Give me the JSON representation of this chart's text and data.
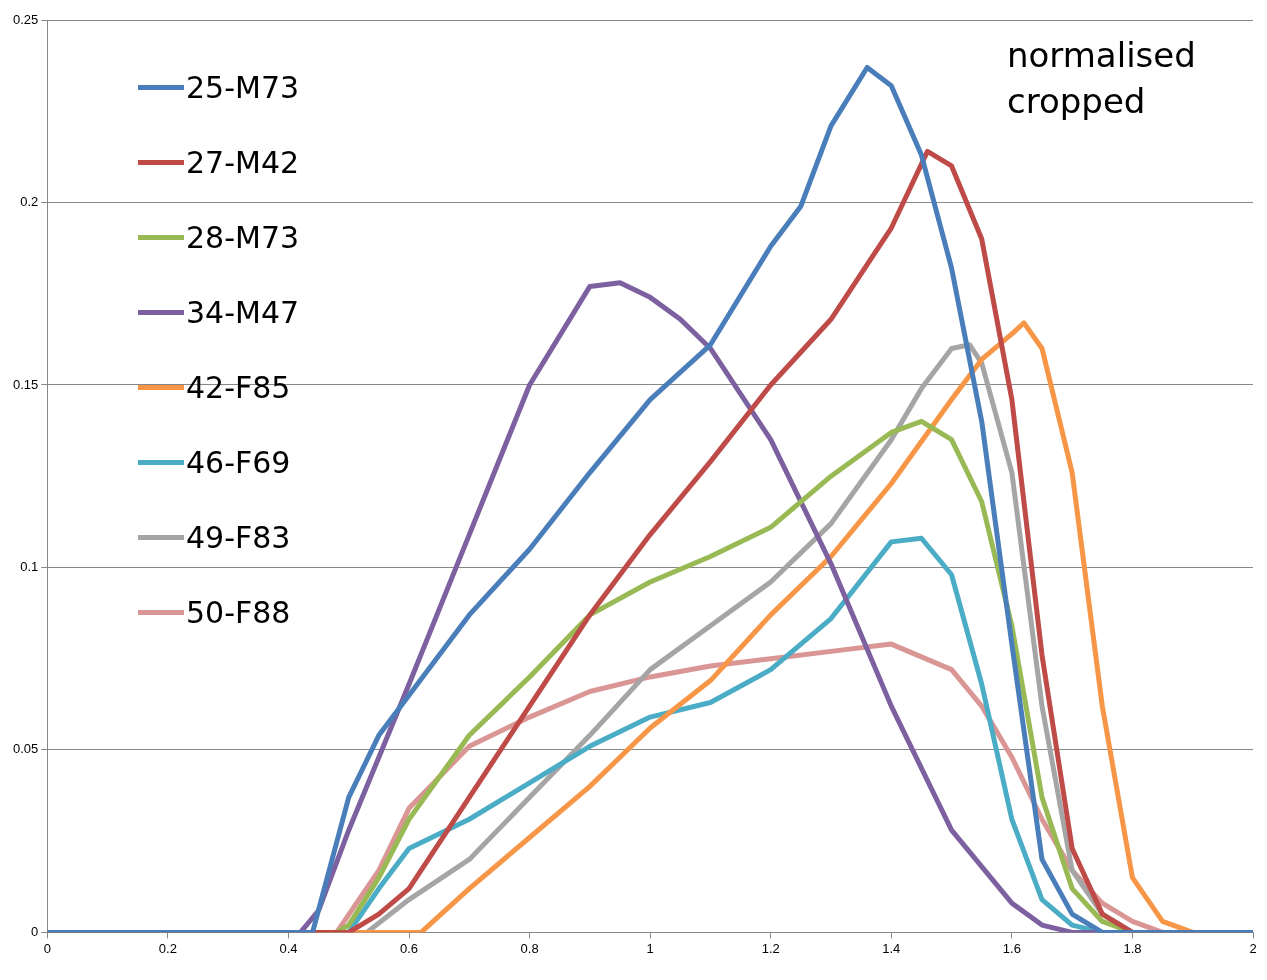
{
  "chart_data": {
    "type": "line",
    "annotations": [
      "normalised cropped"
    ],
    "xlim": [
      0,
      2
    ],
    "xticks": [
      0,
      0.2,
      0.4,
      0.6,
      0.8,
      1,
      1.2,
      1.4,
      1.6,
      1.8,
      2
    ],
    "ylim": [
      0,
      0.25
    ],
    "yticks": [
      0,
      0.05,
      0.1,
      0.15,
      0.2,
      0.25
    ],
    "grid": "y",
    "legend": "top left",
    "marker": "none",
    "line_style": "solid",
    "series": [
      {
        "name": "25-M73",
        "color": "#4a7ebb",
        "x": [
          0,
          0.44,
          0.5,
          0.55,
          0.6,
          0.7,
          0.8,
          0.9,
          1,
          1.1,
          1.2,
          1.25,
          1.3,
          1.36,
          1.4,
          1.45,
          1.5,
          1.55,
          1.6,
          1.65,
          1.7,
          1.75,
          2
        ],
        "values": [
          0,
          0,
          0.037,
          0.054,
          0.065,
          0.087,
          0.105,
          0.126,
          0.146,
          0.161,
          0.188,
          0.199,
          0.221,
          0.237,
          0.232,
          0.213,
          0.182,
          0.14,
          0.079,
          0.02,
          0.005,
          0,
          0
        ]
      },
      {
        "name": "27-M42",
        "color": "#be4b48",
        "x": [
          0,
          0.5,
          0.55,
          0.6,
          0.7,
          0.8,
          0.9,
          1,
          1.1,
          1.2,
          1.3,
          1.4,
          1.46,
          1.5,
          1.55,
          1.6,
          1.65,
          1.7,
          1.75,
          1.8,
          2
        ],
        "values": [
          0,
          0,
          0.005,
          0.012,
          0.037,
          0.062,
          0.087,
          0.109,
          0.129,
          0.15,
          0.168,
          0.193,
          0.214,
          0.21,
          0.19,
          0.146,
          0.076,
          0.023,
          0.005,
          0,
          0
        ]
      },
      {
        "name": "28-M73",
        "color": "#98b954",
        "x": [
          0,
          0.48,
          0.5,
          0.55,
          0.6,
          0.7,
          0.8,
          0.9,
          1,
          1.1,
          1.2,
          1.3,
          1.4,
          1.45,
          1.5,
          1.55,
          1.6,
          1.65,
          1.7,
          1.75,
          1.8,
          2
        ],
        "values": [
          0,
          0,
          0.002,
          0.015,
          0.031,
          0.054,
          0.07,
          0.087,
          0.096,
          0.103,
          0.111,
          0.125,
          0.137,
          0.14,
          0.135,
          0.118,
          0.084,
          0.037,
          0.012,
          0.003,
          0,
          0
        ]
      },
      {
        "name": "34-M47",
        "color": "#7d60a0",
        "x": [
          0,
          0.42,
          0.45,
          0.5,
          0.55,
          0.6,
          0.7,
          0.8,
          0.9,
          0.95,
          1,
          1.05,
          1.1,
          1.2,
          1.3,
          1.4,
          1.5,
          1.6,
          1.65,
          1.7,
          2
        ],
        "values": [
          0,
          0,
          0.006,
          0.028,
          0.048,
          0.068,
          0.109,
          0.15,
          0.177,
          0.178,
          0.174,
          0.168,
          0.16,
          0.135,
          0.101,
          0.062,
          0.028,
          0.008,
          0.002,
          0,
          0
        ]
      },
      {
        "name": "42-F85",
        "color": "#f79646",
        "x": [
          0,
          0.62,
          0.7,
          0.8,
          0.9,
          1,
          1.1,
          1.2,
          1.3,
          1.4,
          1.5,
          1.55,
          1.6,
          1.62,
          1.65,
          1.7,
          1.75,
          1.8,
          1.85,
          1.9,
          2
        ],
        "values": [
          0,
          0,
          0.012,
          0.026,
          0.04,
          0.056,
          0.069,
          0.087,
          0.103,
          0.123,
          0.146,
          0.157,
          0.164,
          0.167,
          0.16,
          0.126,
          0.062,
          0.015,
          0.003,
          0,
          0
        ]
      },
      {
        "name": "46-F69",
        "color": "#4bacc6",
        "x": [
          0,
          0.5,
          0.55,
          0.6,
          0.7,
          0.8,
          0.9,
          1,
          1.1,
          1.2,
          1.3,
          1.4,
          1.45,
          1.5,
          1.55,
          1.6,
          1.65,
          1.7,
          1.75,
          2
        ],
        "values": [
          0,
          0,
          0.012,
          0.023,
          0.031,
          0.041,
          0.051,
          0.059,
          0.063,
          0.072,
          0.086,
          0.107,
          0.108,
          0.098,
          0.068,
          0.031,
          0.009,
          0.002,
          0,
          0
        ]
      },
      {
        "name": "49-F83",
        "color": "#a5a5a5",
        "x": [
          0,
          0.53,
          0.6,
          0.7,
          0.8,
          0.9,
          1,
          1.1,
          1.2,
          1.3,
          1.4,
          1.45,
          1.5,
          1.53,
          1.55,
          1.6,
          1.65,
          1.7,
          1.75,
          1.8,
          2
        ],
        "values": [
          0,
          0,
          0.009,
          0.02,
          0.037,
          0.054,
          0.072,
          0.084,
          0.096,
          0.112,
          0.135,
          0.149,
          0.16,
          0.161,
          0.156,
          0.126,
          0.062,
          0.017,
          0.005,
          0,
          0
        ]
      },
      {
        "name": "50-F88",
        "color": "#d99694",
        "x": [
          0,
          0.48,
          0.55,
          0.6,
          0.7,
          0.8,
          0.9,
          1,
          1.1,
          1.2,
          1.3,
          1.4,
          1.5,
          1.55,
          1.6,
          1.65,
          1.7,
          1.75,
          1.8,
          1.85,
          2
        ],
        "values": [
          0,
          0,
          0.017,
          0.034,
          0.051,
          0.059,
          0.066,
          0.07,
          0.073,
          0.075,
          0.077,
          0.079,
          0.072,
          0.062,
          0.048,
          0.031,
          0.017,
          0.008,
          0.003,
          0,
          0
        ]
      }
    ]
  }
}
